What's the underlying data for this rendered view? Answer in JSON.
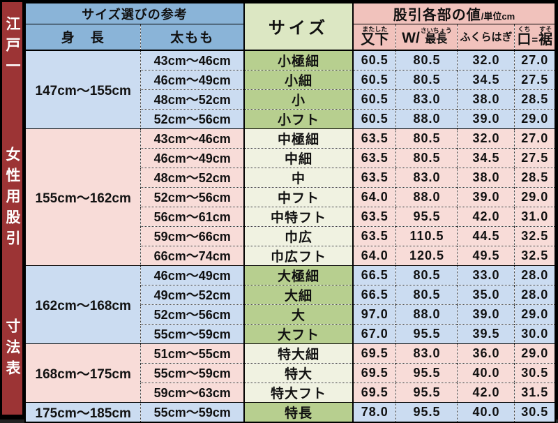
{
  "colors": {
    "sidebar_red": "#9c3435",
    "header_blue": "#8ab4d8",
    "data_blue": "#cbdcf1",
    "header_pink": "#f1c2bc",
    "data_pink": "#f8dcd8",
    "size_header_green": "#dce7c3",
    "green": "#b7cf8f",
    "pale_green": "#f0f2e1",
    "border_black": "#000000",
    "sidebar_text": "#ffffff"
  },
  "sidebar": {
    "title_lines": [
      "江戸一",
      "女性用股引",
      "寸法表"
    ]
  },
  "header": {
    "selection_title": "サイズ選びの参考",
    "height_label": "身　長",
    "thigh_label": "太もも",
    "size_title": "サイズ",
    "values_title": "股引各部の値",
    "values_unit": "/単位cm",
    "value_cols": [
      {
        "label": "又下",
        "ruby": "またした"
      },
      {
        "prefix": "W/",
        "label": "最長",
        "ruby": "さいちょう"
      },
      {
        "label": "ふくらはぎ",
        "ruby": ""
      },
      {
        "label": "口",
        "ruby": "くち",
        "eq": "=",
        "label2": "裾",
        "ruby2": "すそ"
      }
    ]
  },
  "table": {
    "groups": [
      {
        "height": "147cm～155cm",
        "theme": "blue",
        "size_theme": "green",
        "rows": [
          {
            "thigh": "43cm～46cm",
            "size": "小極細",
            "values": [
              "60.5",
              "80.5",
              "32.0",
              "27.0"
            ]
          },
          {
            "thigh": "46cm～49cm",
            "size": "小細",
            "values": [
              "60.5",
              "80.5",
              "34.5",
              "27.5"
            ]
          },
          {
            "thigh": "48cm～52cm",
            "size": "小",
            "values": [
              "60.5",
              "83.0",
              "38.0",
              "28.5"
            ]
          },
          {
            "thigh": "52cm～56cm",
            "size": "小フト",
            "values": [
              "60.5",
              "88.0",
              "39.0",
              "29.0"
            ]
          }
        ]
      },
      {
        "height": "155cm～162cm",
        "theme": "pink",
        "size_theme": "pale",
        "rows": [
          {
            "thigh": "43cm～46cm",
            "size": "中極細",
            "values": [
              "63.5",
              "80.5",
              "32.0",
              "27.0"
            ]
          },
          {
            "thigh": "46cm～49cm",
            "size": "中細",
            "values": [
              "63.5",
              "80.5",
              "34.5",
              "27.5"
            ]
          },
          {
            "thigh": "48cm～52cm",
            "size": "中",
            "values": [
              "63.5",
              "83.0",
              "38.0",
              "28.5"
            ]
          },
          {
            "thigh": "52cm～56cm",
            "size": "中フト",
            "values": [
              "64.0",
              "88.0",
              "39.0",
              "29.0"
            ]
          },
          {
            "thigh": "56cm～61cm",
            "size": "中特フト",
            "values": [
              "63.5",
              "95.5",
              "42.0",
              "31.0"
            ]
          },
          {
            "thigh": "59cm～66cm",
            "size": "巾広",
            "values": [
              "63.5",
              "110.5",
              "44.5",
              "32.5"
            ]
          },
          {
            "thigh": "66cm～74cm",
            "size": "巾広フト",
            "values": [
              "64.0",
              "120.5",
              "49.5",
              "32.5"
            ]
          }
        ]
      },
      {
        "height": "162cm～168cm",
        "theme": "blue",
        "size_theme": "green",
        "rows": [
          {
            "thigh": "46cm～49cm",
            "size": "大極細",
            "values": [
              "66.5",
              "80.5",
              "33.0",
              "28.0"
            ]
          },
          {
            "thigh": "49cm～52cm",
            "size": "大細",
            "values": [
              "66.5",
              "80.5",
              "35.0",
              "28.0"
            ]
          },
          {
            "thigh": "52cm～56cm",
            "size": "大",
            "values": [
              "97.0",
              "88.0",
              "39.0",
              "29.0"
            ]
          },
          {
            "thigh": "55cm～59cm",
            "size": "大フト",
            "values": [
              "67.0",
              "95.5",
              "39.5",
              "30.0"
            ]
          }
        ]
      },
      {
        "height": "168cm～175cm",
        "theme": "pink",
        "size_theme": "pale",
        "rows": [
          {
            "thigh": "51cm～55cm",
            "size": "特大細",
            "values": [
              "69.5",
              "83.0",
              "36.0",
              "29.0"
            ]
          },
          {
            "thigh": "55cm～59cm",
            "size": "特大",
            "values": [
              "69.5",
              "95.5",
              "40.0",
              "30.5"
            ]
          },
          {
            "thigh": "59cm～63cm",
            "size": "特大フト",
            "values": [
              "69.5",
              "95.5",
              "42.0",
              "31.5"
            ]
          }
        ]
      },
      {
        "height": "175cm～185cm",
        "theme": "blue",
        "size_theme": "green",
        "rows": [
          {
            "thigh": "55cm～59cm",
            "size": "特長",
            "values": [
              "78.0",
              "95.5",
              "40.0",
              "30.5"
            ]
          }
        ]
      }
    ]
  }
}
